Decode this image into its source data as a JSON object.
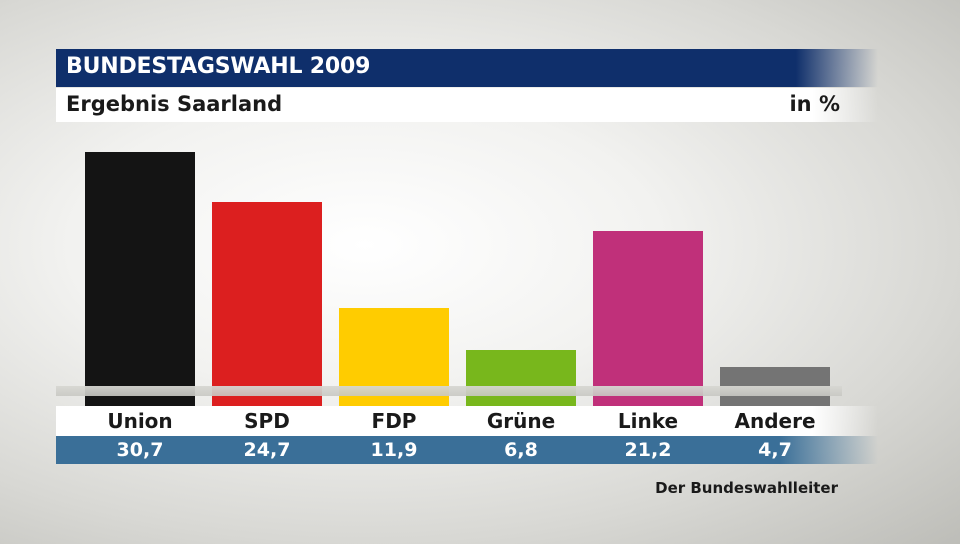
{
  "header": {
    "title": "BUNDESTAGSWAHL 2009",
    "subtitle": "Ergebnis Saarland",
    "unit": "in %"
  },
  "source": "Der Bundeswahlleiter",
  "chart_data": {
    "type": "bar",
    "title": "BUNDESTAGSWAHL 2009",
    "subtitle": "Ergebnis Saarland",
    "ylabel": "in %",
    "xlabel": "",
    "ylim": [
      0,
      30.7
    ],
    "categories": [
      "Union",
      "SPD",
      "FDP",
      "Grüne",
      "Linke",
      "Andere"
    ],
    "values": [
      30.7,
      24.7,
      11.9,
      6.8,
      21.2,
      4.7
    ],
    "value_labels": [
      "30,7",
      "24,7",
      "11,9",
      "6,8",
      "21,2",
      "4,7"
    ],
    "colors": [
      "#141414",
      "#dc1f1f",
      "#ffcc00",
      "#78b71c",
      "#c0307a",
      "#747474"
    ],
    "grid": false,
    "legend": "none"
  }
}
